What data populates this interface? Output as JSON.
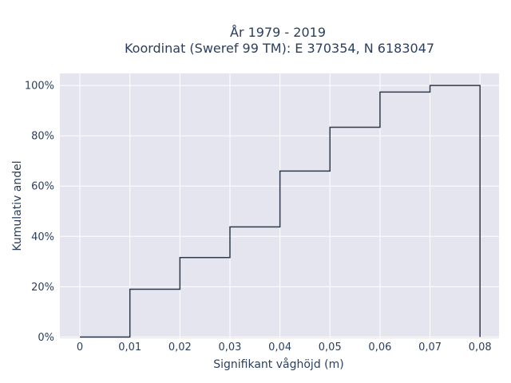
{
  "chart_data": {
    "type": "line",
    "step": true,
    "title_line1": "År 1979 - 2019",
    "title_line2": "Koordinat (Sweref 99 TM): E 370354, N 6183047",
    "xlabel": "Signifikant våghöjd (m)",
    "ylabel": "Kumulativ andel",
    "xlim": [
      -0.004,
      0.0838
    ],
    "ylim": [
      -0.005,
      1.048
    ],
    "x_ticks": [
      0,
      0.01,
      0.02,
      0.03,
      0.04,
      0.05,
      0.06,
      0.07,
      0.08
    ],
    "x_tick_labels": [
      "0",
      "0,01",
      "0,02",
      "0,03",
      "0,04",
      "0,05",
      "0,06",
      "0,07",
      "0,08"
    ],
    "y_ticks": [
      0,
      0.2,
      0.4,
      0.6,
      0.8,
      1.0
    ],
    "y_tick_labels": [
      "0%",
      "20%",
      "40%",
      "60%",
      "80%",
      "100%"
    ],
    "grid": true,
    "colors": {
      "background": "#e5e5f0",
      "grid": "#ffffff",
      "line": "#2f3a4a",
      "text": "#2a3f5f"
    },
    "x": [
      0,
      0.01,
      0.02,
      0.03,
      0.04,
      0.05,
      0.06,
      0.07,
      0.08
    ],
    "y": [
      0,
      0.19,
      0.316,
      0.438,
      0.66,
      0.834,
      0.974,
      1.0,
      0.0
    ]
  }
}
